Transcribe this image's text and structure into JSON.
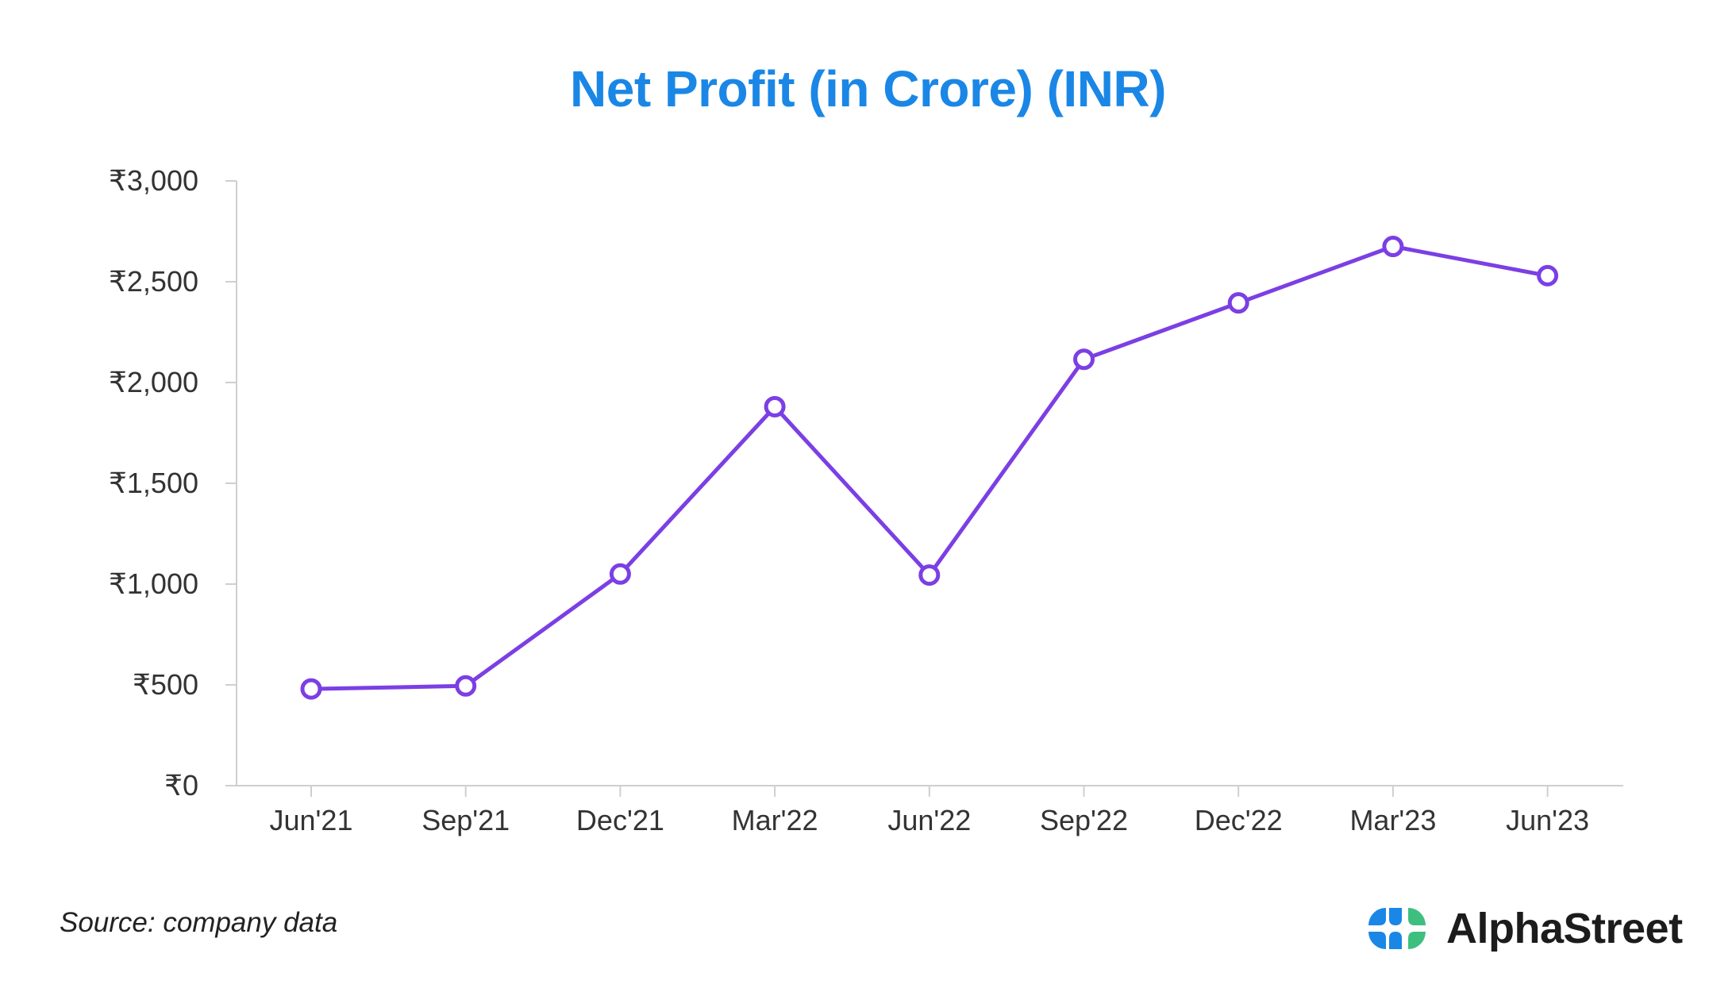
{
  "colors": {
    "title": "#1a87e6",
    "line": "#7b3fe4",
    "axis": "#cfcfcf",
    "text": "#333333",
    "logo_blue": "#1a87e6",
    "logo_green": "#3fbf7f"
  },
  "chart_data": {
    "type": "line",
    "title": "Net Profit (in Crore) (INR)",
    "xlabel": "",
    "ylabel": "",
    "categories": [
      "Jun'21",
      "Sep'21",
      "Dec'21",
      "Mar'22",
      "Jun'22",
      "Sep'22",
      "Dec'22",
      "Mar'23",
      "Jun'23"
    ],
    "series": [
      {
        "values": [
          480,
          495,
          1050,
          1880,
          1045,
          2115,
          2395,
          2675,
          2530
        ]
      }
    ],
    "ylim": [
      0,
      3000
    ],
    "y_ticks": [
      0,
      500,
      1000,
      1500,
      2000,
      2500,
      3000
    ],
    "y_tick_labels": [
      "₹0",
      "₹500",
      "₹1,000",
      "₹1,500",
      "₹2,000",
      "₹2,500",
      "₹3,000"
    ],
    "grid": false,
    "legend": "none",
    "marker": "hollow-circle"
  },
  "footer": {
    "source": "Source: company data",
    "brand": "AlphaStreet",
    "brand_icon": "alphastreet-logo-icon"
  }
}
